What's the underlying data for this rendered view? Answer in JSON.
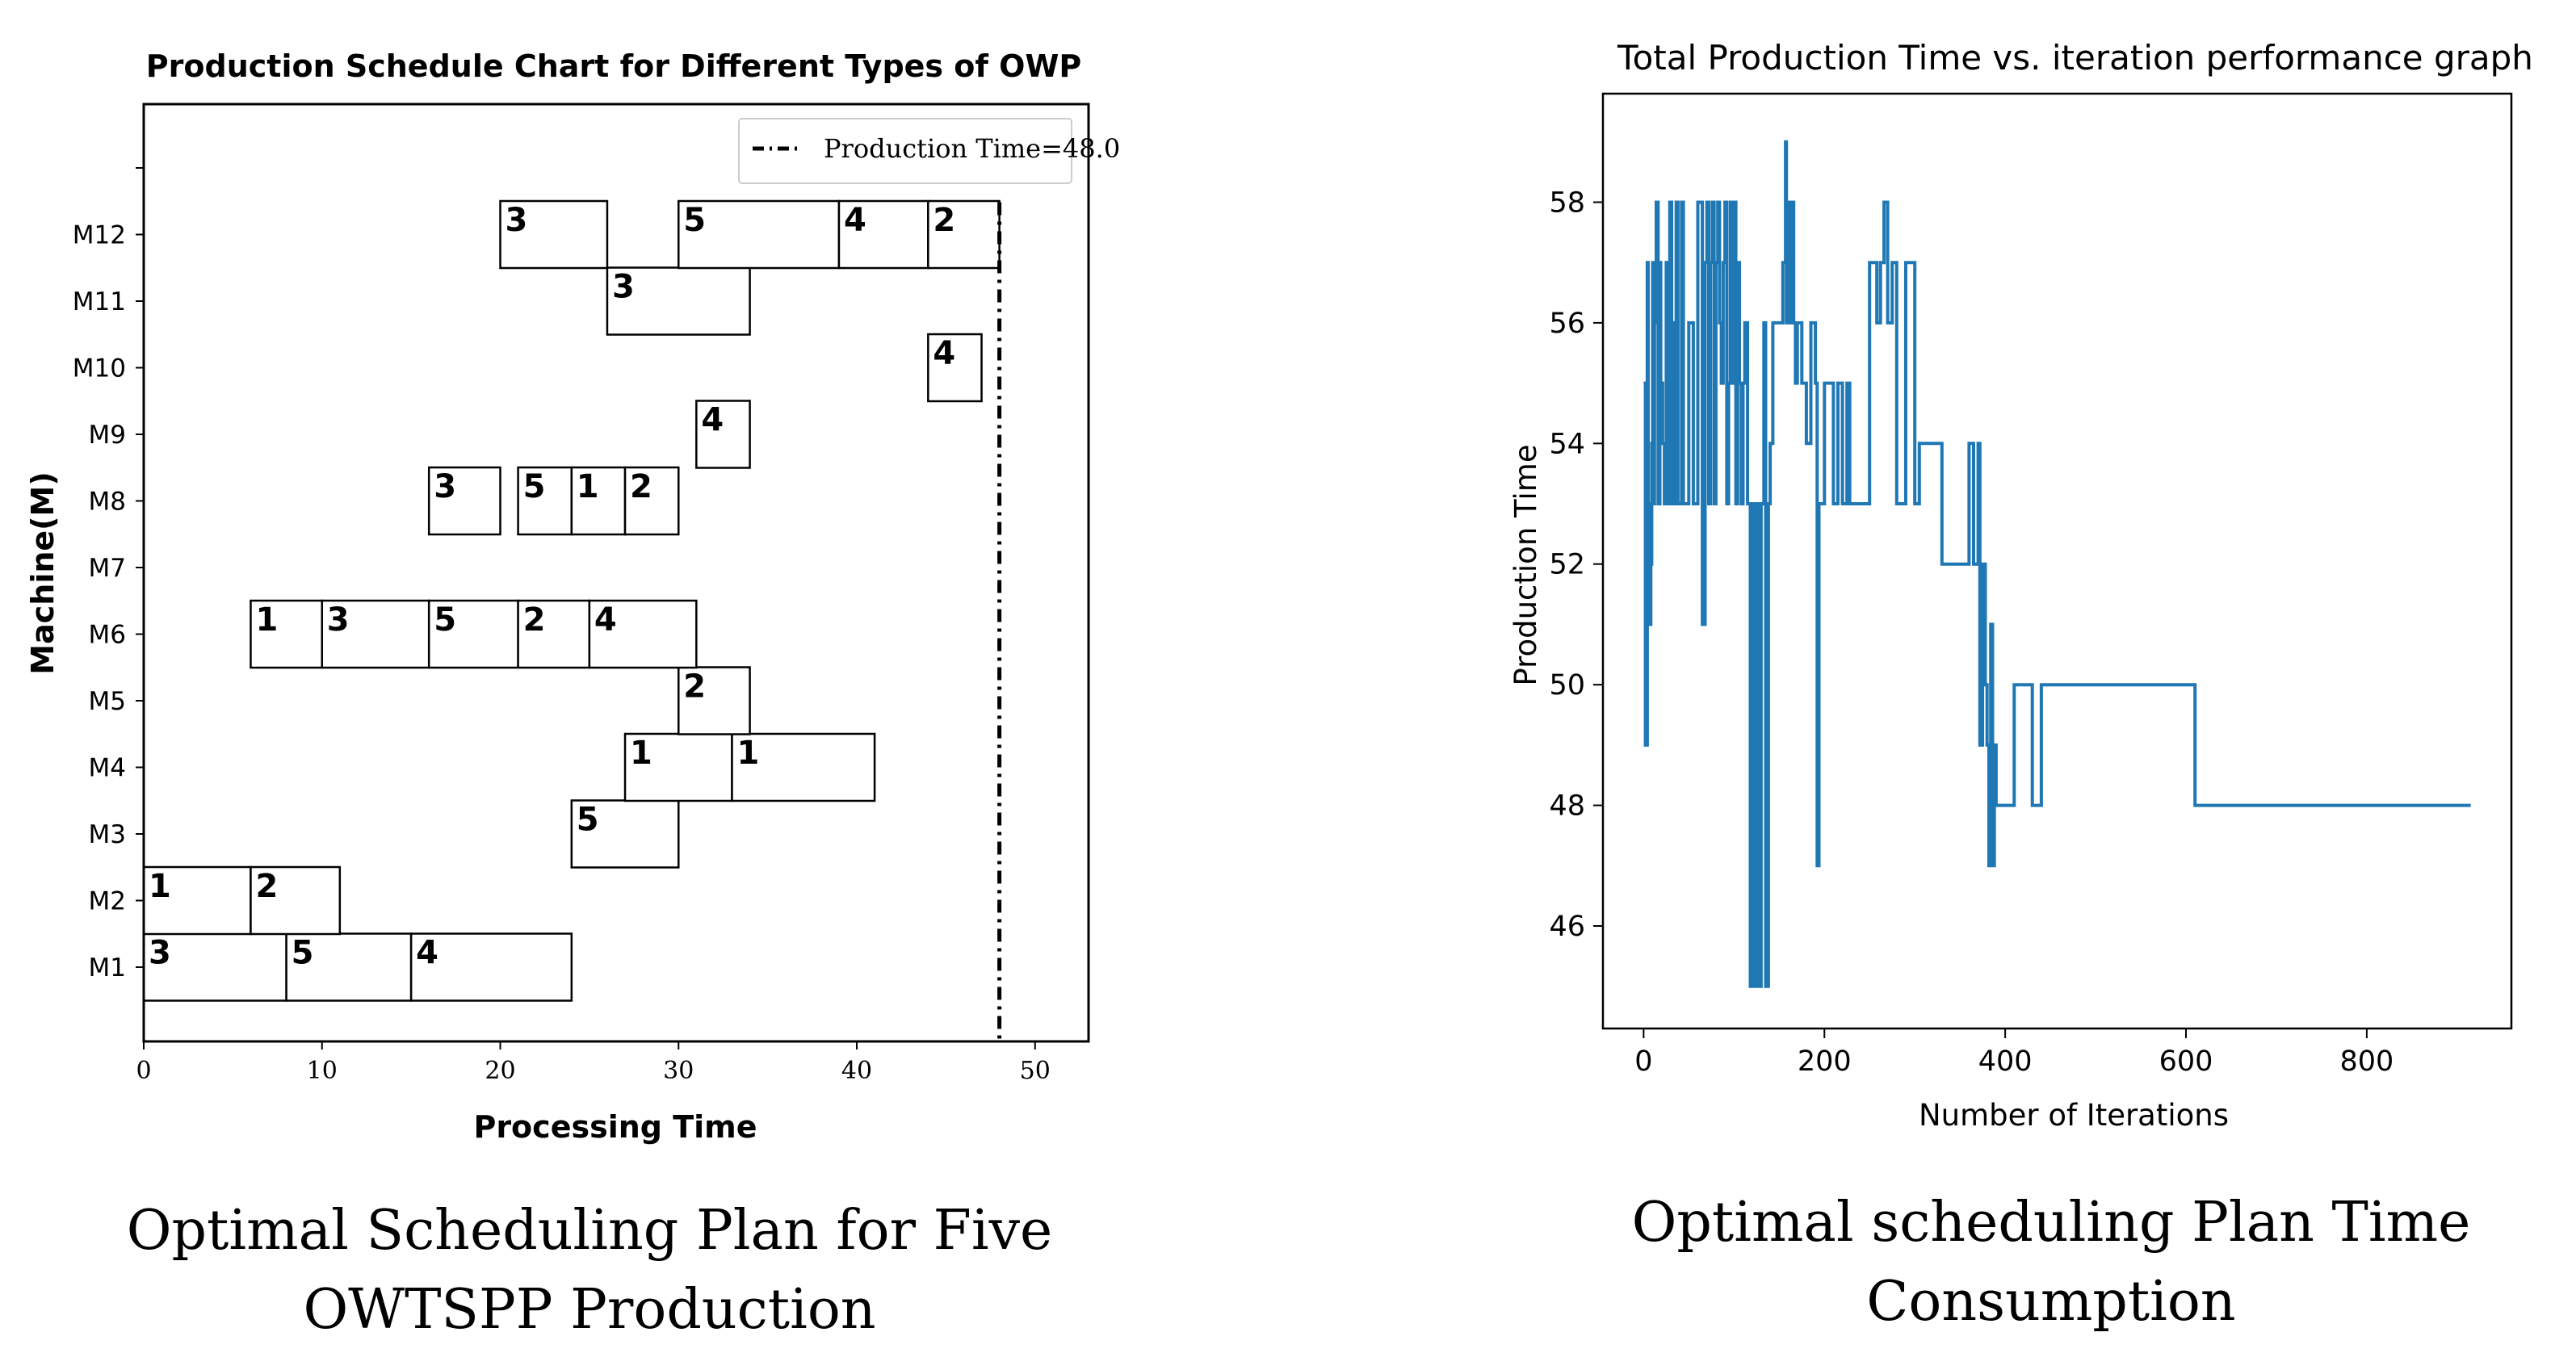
{
  "chart_data": [
    {
      "type": "gantt",
      "title": "Production Schedule Chart for Different Types of OWP",
      "xlabel": "Processing Time",
      "ylabel": "Machine(M)",
      "xlim": [
        0,
        53
      ],
      "xticks": [
        "0",
        "10",
        "20",
        "30",
        "40",
        "50"
      ],
      "machines": [
        "M1",
        "M2",
        "M3",
        "M4",
        "M5",
        "M6",
        "M7",
        "M8",
        "M9",
        "M10",
        "M11",
        "M12"
      ],
      "legend": "Production Time=48.0",
      "production_time": 48.0,
      "tasks": [
        {
          "machine": "M1",
          "start": 0,
          "end": 8,
          "label": "3"
        },
        {
          "machine": "M1",
          "start": 8,
          "end": 15,
          "label": "5"
        },
        {
          "machine": "M1",
          "start": 15,
          "end": 24,
          "label": "4"
        },
        {
          "machine": "M2",
          "start": 0,
          "end": 6,
          "label": "1"
        },
        {
          "machine": "M2",
          "start": 6,
          "end": 11,
          "label": "2"
        },
        {
          "machine": "M3",
          "start": 24,
          "end": 30,
          "label": "5"
        },
        {
          "machine": "M4",
          "start": 27,
          "end": 33,
          "label": "1"
        },
        {
          "machine": "M4",
          "start": 33,
          "end": 41,
          "label": "1"
        },
        {
          "machine": "M5",
          "start": 30,
          "end": 34,
          "label": "2"
        },
        {
          "machine": "M6",
          "start": 6,
          "end": 10,
          "label": "1"
        },
        {
          "machine": "M6",
          "start": 10,
          "end": 16,
          "label": "3"
        },
        {
          "machine": "M6",
          "start": 16,
          "end": 21,
          "label": "5"
        },
        {
          "machine": "M6",
          "start": 21,
          "end": 25,
          "label": "2"
        },
        {
          "machine": "M6",
          "start": 25,
          "end": 31,
          "label": "4"
        },
        {
          "machine": "M8",
          "start": 16,
          "end": 20,
          "label": "3"
        },
        {
          "machine": "M8",
          "start": 21,
          "end": 24,
          "label": "5"
        },
        {
          "machine": "M8",
          "start": 24,
          "end": 27,
          "label": "1"
        },
        {
          "machine": "M8",
          "start": 27,
          "end": 30,
          "label": "2"
        },
        {
          "machine": "M9",
          "start": 31,
          "end": 34,
          "label": "4"
        },
        {
          "machine": "M10",
          "start": 44,
          "end": 47,
          "label": "4"
        },
        {
          "machine": "M11",
          "start": 26,
          "end": 34,
          "label": "3"
        },
        {
          "machine": "M12",
          "start": 20,
          "end": 26,
          "label": "3"
        },
        {
          "machine": "M12",
          "start": 30,
          "end": 39,
          "label": "5"
        },
        {
          "machine": "M12",
          "start": 39,
          "end": 44,
          "label": "4"
        },
        {
          "machine": "M12",
          "start": 44,
          "end": 48,
          "label": "2"
        }
      ]
    },
    {
      "type": "line",
      "title": "Total Production Time vs. iteration performance graph",
      "xlabel": "Number of Iterations",
      "ylabel": "Production Time",
      "xlim": [
        -45,
        960
      ],
      "ylim": [
        44.3,
        59.8
      ],
      "xticks": [
        "0",
        "200",
        "400",
        "600",
        "800"
      ],
      "yticks": [
        "46",
        "48",
        "50",
        "52",
        "54",
        "56",
        "58"
      ],
      "color": "#1f77b4",
      "x": [
        0,
        2,
        4,
        5,
        6,
        7,
        8,
        9,
        10,
        11,
        12,
        14,
        16,
        18,
        19,
        21,
        23,
        25,
        27,
        29,
        31,
        33,
        34,
        36,
        38,
        40,
        42,
        44,
        46,
        48,
        50,
        55,
        60,
        65,
        68,
        70,
        72,
        74,
        76,
        78,
        80,
        82,
        84,
        86,
        88,
        90,
        92,
        94,
        96,
        98,
        100,
        102,
        104,
        106,
        108,
        110,
        112,
        115,
        118,
        120,
        123,
        125,
        128,
        130,
        133,
        135,
        138,
        140,
        143,
        146,
        150,
        154,
        157,
        158,
        160,
        162,
        164,
        166,
        168,
        170,
        175,
        180,
        185,
        190,
        192,
        194,
        200,
        210,
        215,
        220,
        225,
        228,
        235,
        240,
        250,
        255,
        258,
        262,
        266,
        270,
        275,
        280,
        285,
        290,
        295,
        300,
        305,
        310,
        320,
        330,
        340,
        350,
        360,
        365,
        370,
        372,
        375,
        378,
        380,
        382,
        384,
        386,
        388,
        390,
        392,
        394,
        396,
        398,
        400,
        410,
        420,
        430,
        440,
        450,
        500,
        550,
        610,
        700,
        800,
        915
      ],
      "y": [
        55,
        49,
        57,
        51,
        53,
        51,
        52,
        54,
        57,
        53,
        56,
        58,
        53,
        57,
        55,
        54,
        53,
        57,
        53,
        58,
        53,
        56,
        53,
        58,
        53,
        53,
        58,
        53,
        53,
        53,
        56,
        53,
        58,
        51,
        57,
        58,
        53,
        57,
        58,
        53,
        57,
        58,
        56,
        55,
        57,
        58,
        53,
        55,
        58,
        55,
        58,
        53,
        57,
        55,
        53,
        55,
        56,
        53,
        45,
        53,
        45,
        53,
        45,
        53,
        56,
        45,
        53,
        54,
        56,
        56,
        56,
        57,
        59,
        56,
        58,
        56,
        58,
        56,
        55,
        56,
        55,
        54,
        56,
        55,
        47,
        53,
        55,
        53,
        55,
        53,
        55,
        53,
        53,
        53,
        57,
        57,
        56,
        57,
        58,
        56,
        57,
        53,
        53,
        57,
        57,
        53,
        54,
        54,
        54,
        52,
        52,
        52,
        54,
        52,
        54,
        49,
        52,
        50,
        49,
        47,
        51,
        47,
        49,
        48,
        48,
        48,
        48,
        48,
        48,
        50,
        50,
        48,
        50,
        50,
        50,
        50,
        48,
        48,
        48,
        48
      ]
    }
  ],
  "captions": {
    "left_line1": "Optimal Scheduling Plan for Five",
    "left_line2": "OWTSPP Production",
    "right_line1": "Optimal scheduling Plan Time",
    "right_line2": "Consumption"
  }
}
